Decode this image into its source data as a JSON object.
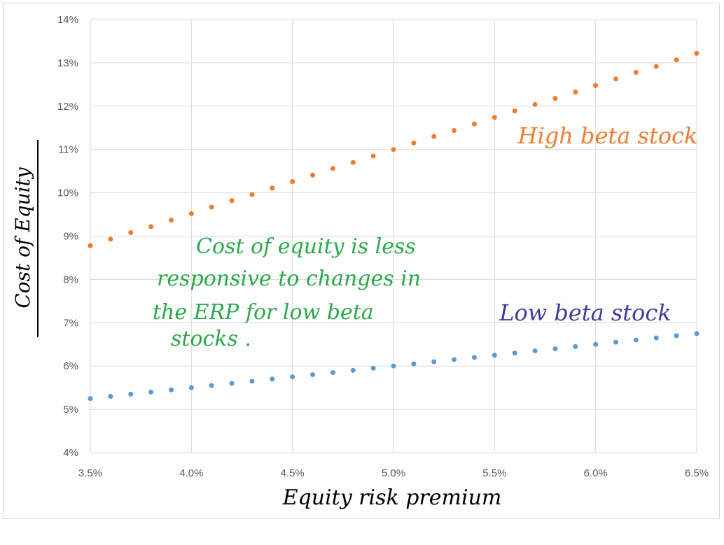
{
  "chart_data": {
    "type": "scatter",
    "xlabel": "Equity risk premium",
    "ylabel": "Cost of Equity",
    "xlim": [
      0.035,
      0.065
    ],
    "ylim": [
      0.04,
      0.14
    ],
    "x_ticks": [
      "3.5%",
      "4.0%",
      "4.5%",
      "5.0%",
      "5.5%",
      "6.0%",
      "6.5%"
    ],
    "y_ticks": [
      "4%",
      "5%",
      "6%",
      "7%",
      "8%",
      "9%",
      "10%",
      "11%",
      "12%",
      "13%",
      "14%"
    ],
    "grid": true,
    "x": [
      0.035,
      0.036,
      0.037,
      0.038,
      0.039,
      0.04,
      0.041,
      0.042,
      0.043,
      0.044,
      0.045,
      0.046,
      0.047,
      0.048,
      0.049,
      0.05,
      0.051,
      0.052,
      0.053,
      0.054,
      0.055,
      0.056,
      0.057,
      0.058,
      0.059,
      0.06,
      0.061,
      0.062,
      0.063,
      0.064,
      0.065
    ],
    "series": [
      {
        "color": "#ed7d31",
        "values": [
          0.0878,
          0.0893,
          0.0908,
          0.0922,
          0.0937,
          0.0952,
          0.0967,
          0.0982,
          0.0996,
          0.1011,
          0.1026,
          0.1041,
          0.1056,
          0.107,
          0.1085,
          0.11,
          0.1115,
          0.113,
          0.1144,
          0.1159,
          0.1174,
          0.1189,
          0.1204,
          0.1218,
          0.1233,
          0.1248,
          0.1263,
          0.1278,
          0.1292,
          0.1307,
          0.1322
        ]
      },
      {
        "color": "#5b9bd5",
        "values": [
          0.0525,
          0.053,
          0.0535,
          0.054,
          0.0545,
          0.055,
          0.0555,
          0.056,
          0.0565,
          0.057,
          0.0575,
          0.058,
          0.0585,
          0.059,
          0.0595,
          0.06,
          0.0605,
          0.061,
          0.0615,
          0.062,
          0.0625,
          0.063,
          0.0635,
          0.064,
          0.0645,
          0.065,
          0.0655,
          0.066,
          0.0665,
          0.067,
          0.0675
        ]
      }
    ],
    "annotations": {
      "high_beta": "High beta stock",
      "low_beta": "Low beta stock",
      "note_line1": "Cost of equity is less",
      "note_line2": "responsive to changes in",
      "note_line3": "the ERP for low beta",
      "note_line4": "stocks ."
    },
    "colors": {
      "high_label": "#ed7d31",
      "low_label": "#3c3ca0",
      "note": "#2aa84a",
      "axis_label": "#000000"
    }
  }
}
